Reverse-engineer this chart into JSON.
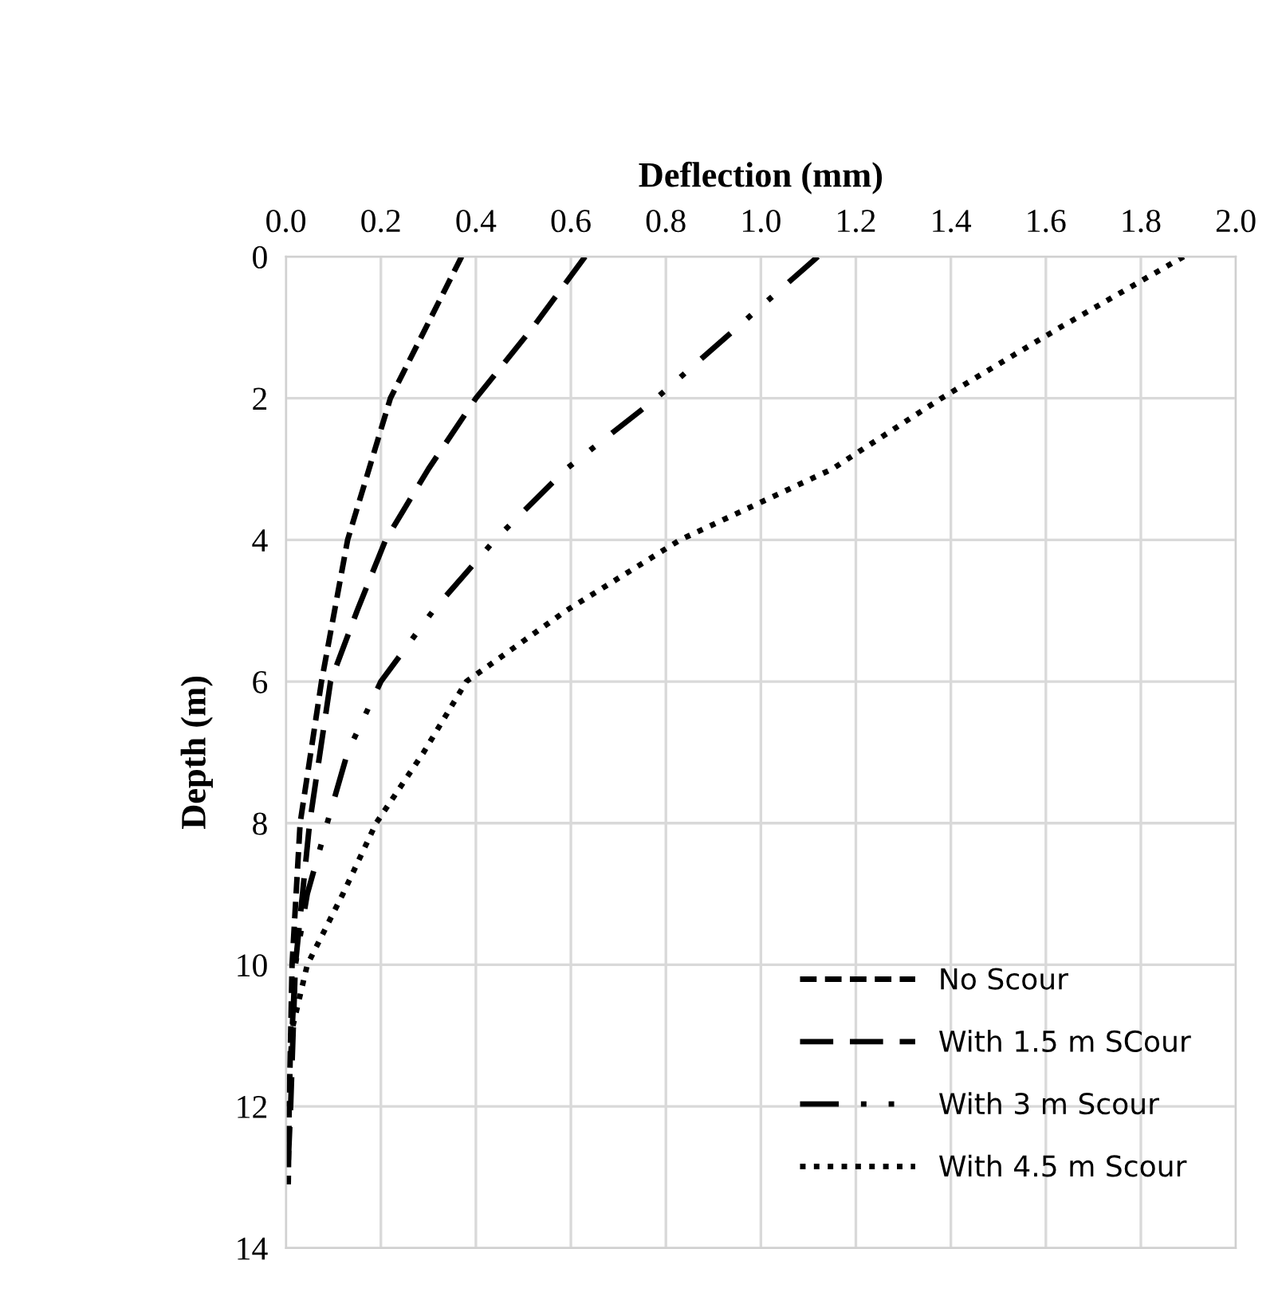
{
  "chart_data": {
    "type": "line",
    "xlabel": "Deflection (mm)",
    "ylabel": "Depth (m)",
    "xlim": [
      0,
      2.0
    ],
    "xticks": [
      {
        "value": 0,
        "label": "0.0"
      },
      {
        "value": 0.2,
        "label": "0.2"
      },
      {
        "value": 0.4,
        "label": "0.4"
      },
      {
        "value": 0.6,
        "label": "0.6"
      },
      {
        "value": 0.8,
        "label": "0.8"
      },
      {
        "value": 1.0,
        "label": "1.0"
      },
      {
        "value": 1.2,
        "label": "1.2"
      },
      {
        "value": 1.4,
        "label": "1.4"
      },
      {
        "value": 1.6,
        "label": "1.6"
      },
      {
        "value": 1.8,
        "label": "1.8"
      },
      {
        "value": 2.0,
        "label": "2.0"
      }
    ],
    "ylim": [
      14,
      0
    ],
    "yticks": [
      0,
      2,
      4,
      6,
      8,
      10,
      12,
      14
    ],
    "grid": true,
    "legend": "bottom right",
    "marker": "none",
    "series": [
      {
        "name": "No Scour",
        "color": "#000000",
        "line_style": "dashed",
        "x": [
          0.37,
          0.22,
          0.13,
          0.075,
          0.03,
          0.013,
          0.007,
          0.005
        ],
        "values": [
          0,
          2,
          4,
          6,
          8,
          10,
          12,
          13.1
        ]
      },
      {
        "name": "With 1.5 m SCour",
        "color": "#000000",
        "line_style": "dashed",
        "x": [
          0.63,
          0.52,
          0.4,
          0.3,
          0.21,
          0.15,
          0.094,
          0.05,
          0.02,
          0.01,
          0.003
        ],
        "values": [
          0,
          1,
          2,
          3,
          4,
          5,
          6,
          8,
          10,
          12,
          13.1
        ]
      },
      {
        "name": "With 3 m Scour",
        "color": "#000000",
        "line_style": "dashdot",
        "x": [
          1.12,
          0.95,
          0.78,
          0.59,
          0.44,
          0.31,
          0.2,
          0.13,
          0.087,
          0.045,
          0.02,
          0.005
        ],
        "values": [
          0,
          1,
          2,
          3,
          4,
          5,
          6,
          7,
          8,
          9,
          10,
          12
        ]
      },
      {
        "name": "With 4.5 m Scour",
        "color": "#000000",
        "line_style": "dotted",
        "x": [
          1.89,
          1.63,
          1.38,
          1.15,
          0.83,
          0.59,
          0.38,
          0.29,
          0.19,
          0.12,
          0.045,
          0.01
        ],
        "values": [
          0,
          1,
          2,
          3,
          4,
          5,
          6,
          7,
          8,
          9,
          10,
          11
        ]
      }
    ]
  }
}
